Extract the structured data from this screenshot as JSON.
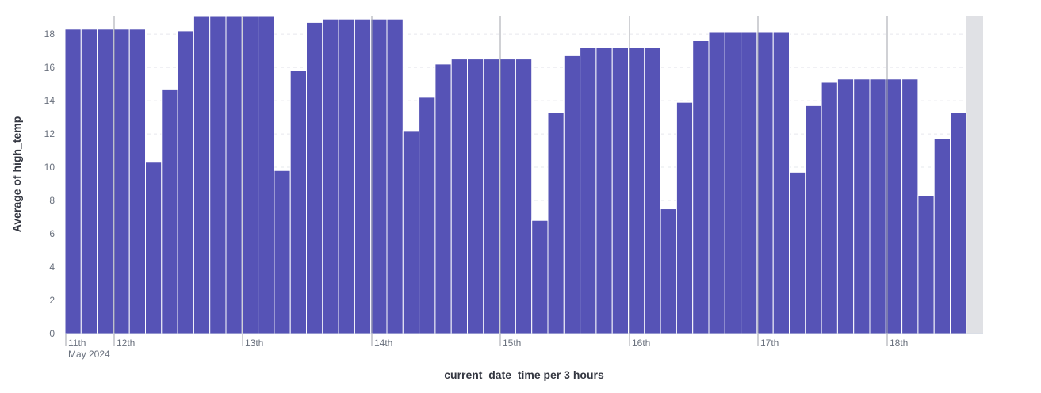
{
  "chart_data": {
    "type": "bar",
    "x_axis": {
      "title": "current_date_time per 3 hours",
      "tick_labels": [
        "11th",
        "12th",
        "13th",
        "14th",
        "15th",
        "16th",
        "17th",
        "18th"
      ],
      "secondary_label": "May 2024"
    },
    "y_axis": {
      "title": "Average of high_temp",
      "ticks": [
        0,
        2,
        4,
        6,
        8,
        10,
        12,
        14,
        16,
        18
      ],
      "range": [
        0,
        19.1
      ]
    },
    "interval": "3 hours",
    "x_start": "2024-05-11 00:00",
    "values": [
      18.3,
      18.3,
      18.3,
      18.3,
      18.3,
      10.3,
      14.7,
      18.2,
      19.2,
      19.2,
      19.2,
      19.2,
      19.2,
      9.8,
      15.8,
      18.7,
      18.9,
      18.9,
      18.9,
      18.9,
      18.9,
      12.2,
      14.2,
      16.2,
      16.5,
      16.5,
      16.5,
      16.5,
      16.5,
      6.8,
      13.3,
      16.7,
      17.2,
      17.2,
      17.2,
      17.2,
      17.2,
      7.5,
      13.9,
      17.6,
      18.1,
      18.1,
      18.1,
      18.1,
      18.1,
      9.7,
      13.7,
      15.1,
      15.3,
      15.3,
      15.3,
      15.3,
      15.3,
      8.3,
      11.7,
      13.3
    ],
    "bar_color": "#5653b6",
    "grid": "horizontal dashed",
    "shaded_region_color": "#e0e1e5"
  }
}
